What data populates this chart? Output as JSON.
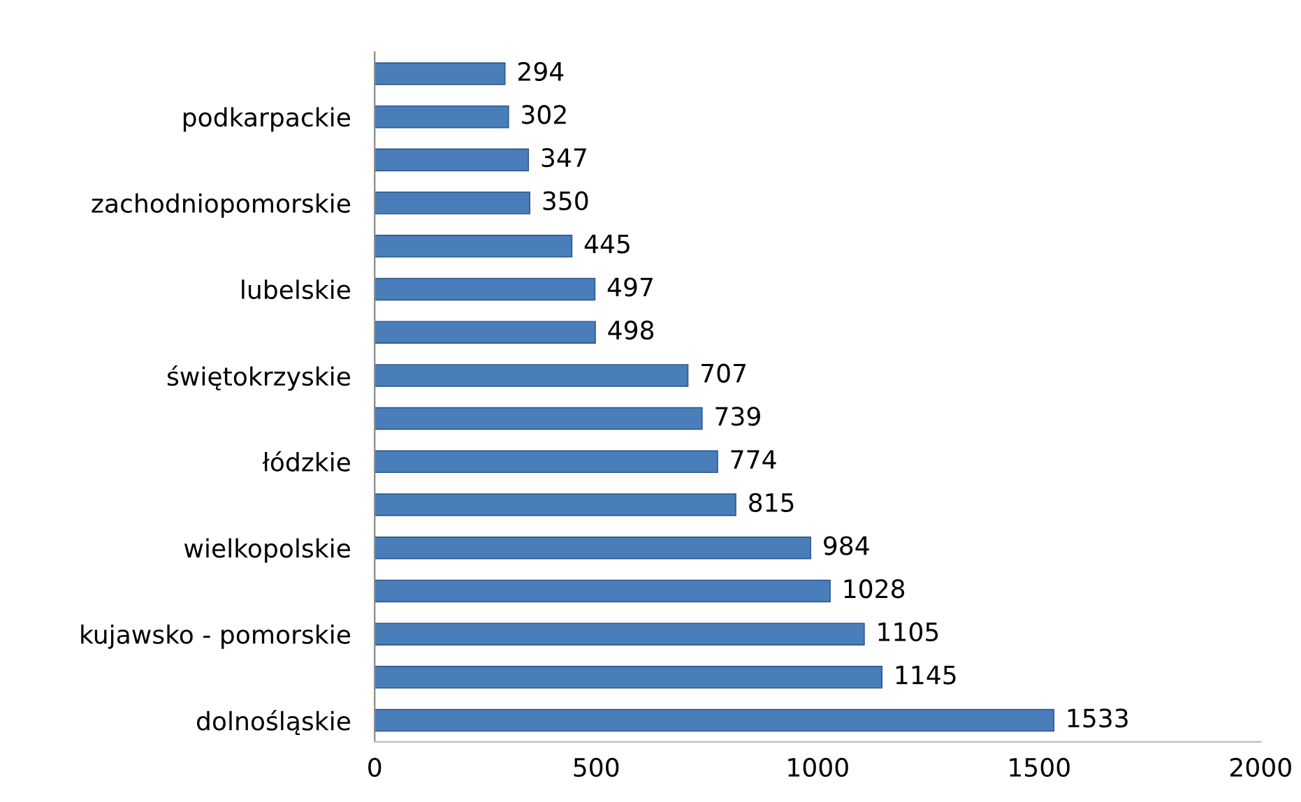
{
  "chart_data": {
    "type": "bar",
    "orientation": "horizontal",
    "categories": [
      null,
      "podkarpackie",
      null,
      "zachodniopomorskie",
      null,
      "lubelskie",
      null,
      "świętokrzyskie",
      null,
      "łódzkie",
      null,
      "wielkopolskie",
      null,
      "kujawsko - pomorskie",
      null,
      "dolnośląskie"
    ],
    "values": [
      294,
      302,
      347,
      350,
      445,
      497,
      498,
      707,
      739,
      774,
      815,
      984,
      1028,
      1105,
      1145,
      1533
    ],
    "color": "#4a7ebb",
    "xlim": [
      0,
      2000
    ],
    "xticks": [
      0,
      500,
      1000,
      1500,
      2000
    ],
    "grid": false,
    "legend": false,
    "data_labels": true
  }
}
